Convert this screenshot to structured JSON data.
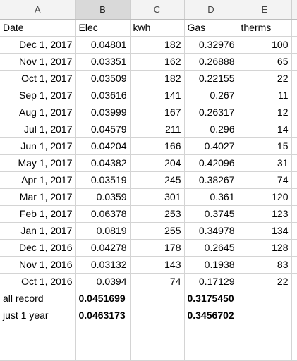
{
  "columns": [
    {
      "letter": "A",
      "selected": false
    },
    {
      "letter": "B",
      "selected": true
    },
    {
      "letter": "C",
      "selected": false
    },
    {
      "letter": "D",
      "selected": false
    },
    {
      "letter": "E",
      "selected": false
    }
  ],
  "header_row": {
    "date": "Date",
    "elec": "Elec",
    "kwh": "kwh",
    "gas": "Gas",
    "therms": "therms"
  },
  "rows": [
    {
      "date": "Dec 1, 2017",
      "elec": "0.04801",
      "kwh": "182",
      "gas": "0.32976",
      "therms": "100"
    },
    {
      "date": "Nov 1, 2017",
      "elec": "0.03351",
      "kwh": "162",
      "gas": "0.26888",
      "therms": "65"
    },
    {
      "date": "Oct 1, 2017",
      "elec": "0.03509",
      "kwh": "182",
      "gas": "0.22155",
      "therms": "22"
    },
    {
      "date": "Sep 1, 2017",
      "elec": "0.03616",
      "kwh": "141",
      "gas": "0.267",
      "therms": "11"
    },
    {
      "date": "Aug 1, 2017",
      "elec": "0.03999",
      "kwh": "167",
      "gas": "0.26317",
      "therms": "12"
    },
    {
      "date": "Jul 1, 2017",
      "elec": "0.04579",
      "kwh": "211",
      "gas": "0.296",
      "therms": "14"
    },
    {
      "date": "Jun 1, 2017",
      "elec": "0.04204",
      "kwh": "166",
      "gas": "0.4027",
      "therms": "15"
    },
    {
      "date": "May 1, 2017",
      "elec": "0.04382",
      "kwh": "204",
      "gas": "0.42096",
      "therms": "31"
    },
    {
      "date": "Apr 1, 2017",
      "elec": "0.03519",
      "kwh": "245",
      "gas": "0.38267",
      "therms": "74"
    },
    {
      "date": "Mar 1, 2017",
      "elec": "0.0359",
      "kwh": "301",
      "gas": "0.361",
      "therms": "120"
    },
    {
      "date": "Feb 1, 2017",
      "elec": "0.06378",
      "kwh": "253",
      "gas": "0.3745",
      "therms": "123"
    },
    {
      "date": "Jan 1, 2017",
      "elec": "0.0819",
      "kwh": "255",
      "gas": "0.34978",
      "therms": "134"
    },
    {
      "date": "Dec 1, 2016",
      "elec": "0.04278",
      "kwh": "178",
      "gas": "0.2645",
      "therms": "128"
    },
    {
      "date": "Nov 1, 2016",
      "elec": "0.03132",
      "kwh": "143",
      "gas": "0.1938",
      "therms": "83"
    },
    {
      "date": "Oct 1, 2016",
      "elec": "0.0394",
      "kwh": "74",
      "gas": "0.17129",
      "therms": "22"
    }
  ],
  "summary_rows": [
    {
      "label": "all record",
      "elec": "0.0451699",
      "gas": "0.3175450"
    },
    {
      "label": "just 1 year",
      "elec": "0.0463173",
      "gas": "0.3456702"
    }
  ]
}
